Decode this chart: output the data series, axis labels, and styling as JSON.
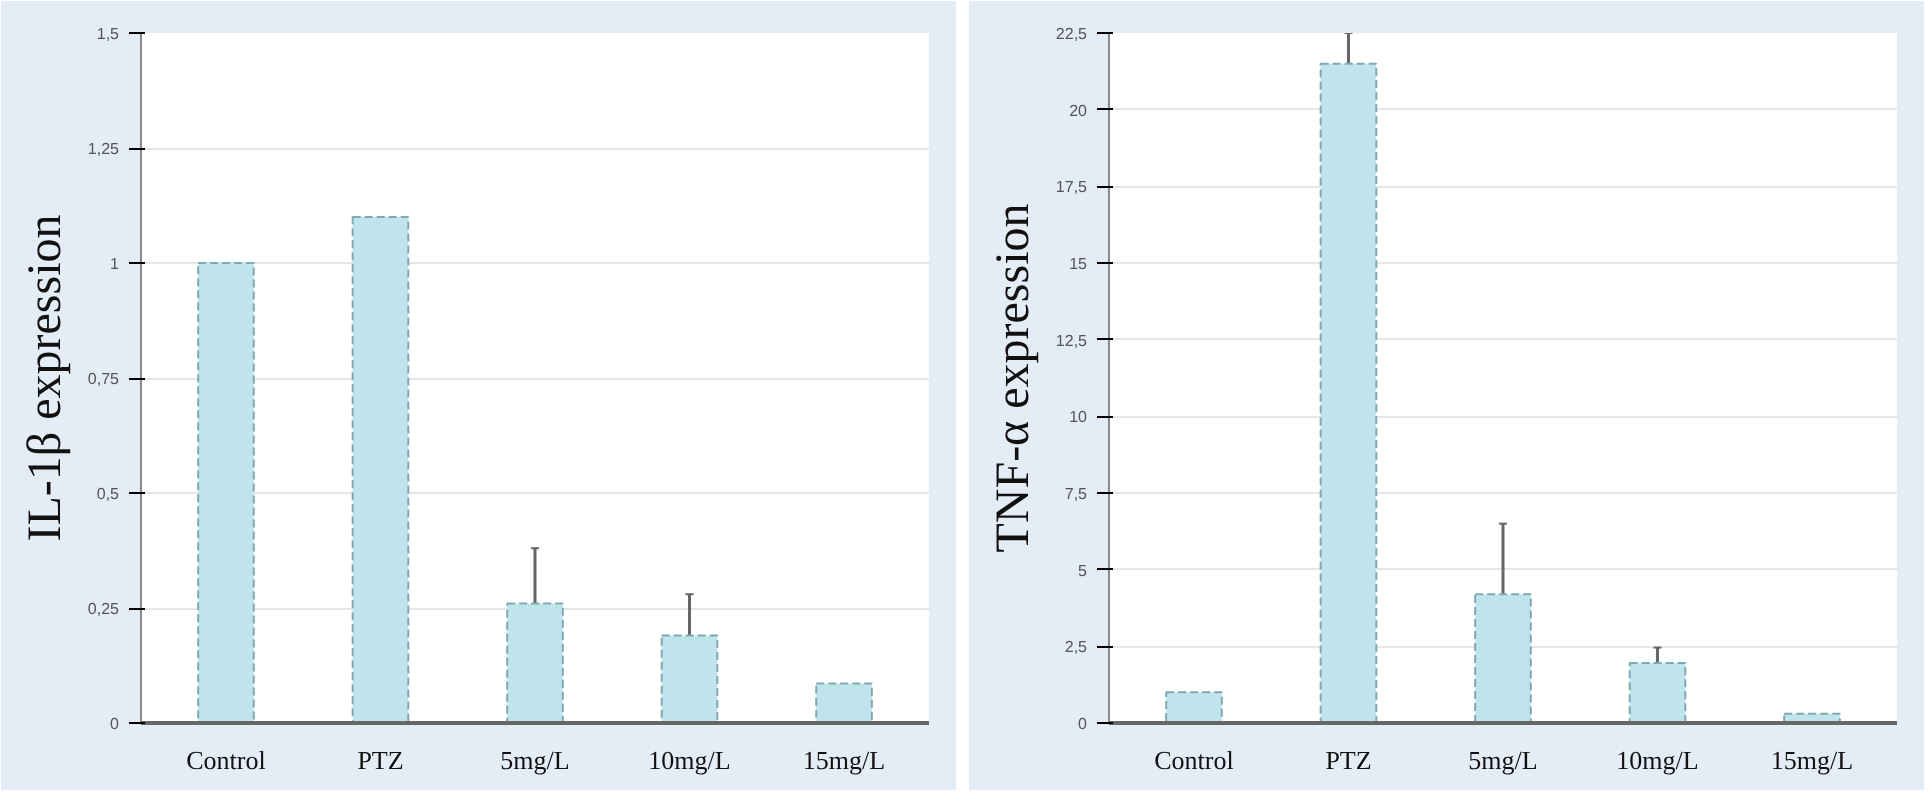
{
  "chart_data": [
    {
      "type": "bar",
      "ylabel": "IL-1β expression",
      "categories": [
        "Control",
        "PTZ",
        "5mg/L",
        "10mg/L",
        "15mg/L"
      ],
      "values": [
        1.0,
        1.1,
        0.26,
        0.19,
        0.086
      ],
      "errors": [
        null,
        null,
        0.12,
        0.09,
        null
      ],
      "color": "#bfe4ec",
      "ylim": [
        0,
        1.5
      ],
      "yticks": [
        0,
        {
          "value": 0.25,
          "label": "0,25"
        },
        {
          "value": 0.5,
          "label": "0,5"
        },
        {
          "value": 0.75,
          "label": "0,75"
        },
        1,
        {
          "value": 1.25,
          "label": "1,25"
        },
        {
          "value": 1.5,
          "label": "1,5"
        }
      ],
      "grid": "y"
    },
    {
      "type": "bar",
      "ylabel": "TNF-α expression",
      "categories": [
        "Control",
        "PTZ",
        "5mg/L",
        "10mg/L",
        "15mg/L"
      ],
      "values": [
        1.0,
        21.5,
        4.2,
        1.96,
        0.3
      ],
      "errors": [
        null,
        1.0,
        2.3,
        0.5,
        null
      ],
      "color": "#bfe4ec",
      "ylim": [
        0,
        22.5
      ],
      "yticks": [
        0,
        {
          "value": 2.5,
          "label": "2,5"
        },
        5,
        {
          "value": 7.5,
          "label": "7,5"
        },
        10,
        {
          "value": 12.5,
          "label": "12,5"
        },
        15,
        {
          "value": 17.5,
          "label": "17,5"
        },
        20,
        {
          "value": 22.5,
          "label": "22,5"
        }
      ],
      "grid": "y"
    }
  ]
}
